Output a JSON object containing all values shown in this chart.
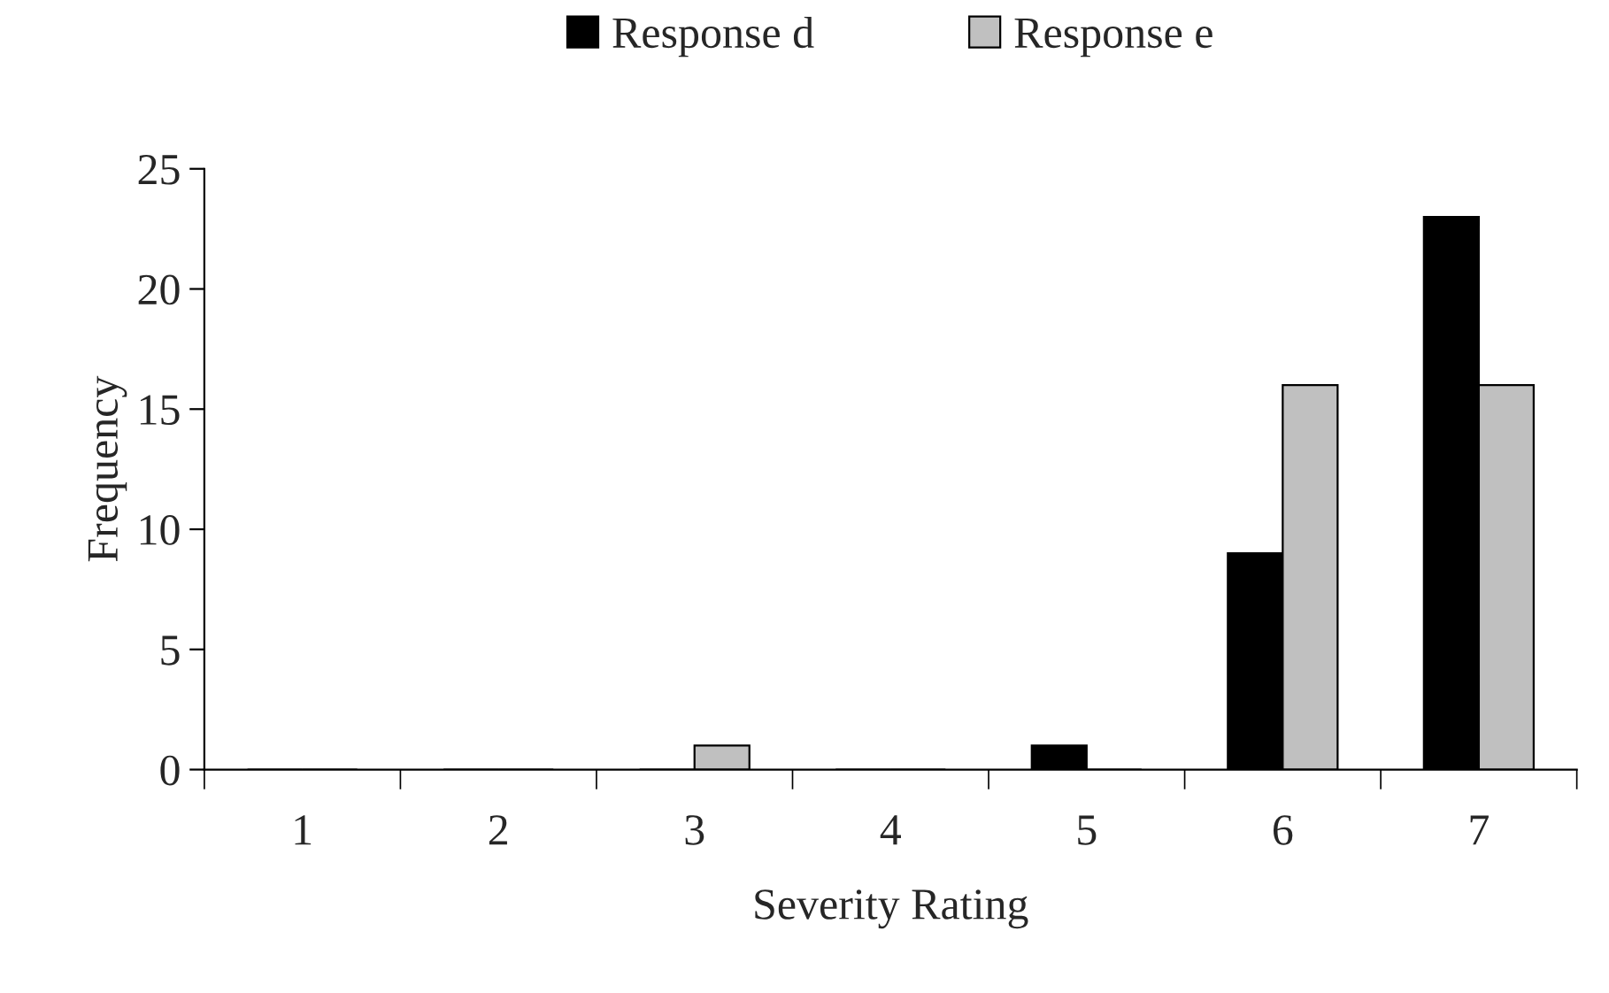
{
  "chart_data": {
    "type": "bar",
    "xlabel": "Severity Rating",
    "ylabel": "Frequency",
    "categories": [
      "1",
      "2",
      "3",
      "4",
      "5",
      "6",
      "7"
    ],
    "series": [
      {
        "name": "Response d",
        "color": "#000000",
        "values": [
          0,
          0,
          0,
          0,
          1,
          9,
          23
        ]
      },
      {
        "name": "Response e",
        "color": "#c0c0c0",
        "values": [
          0,
          0,
          1,
          0,
          0,
          16,
          16
        ]
      }
    ],
    "ylim": [
      0,
      25
    ],
    "yticks": [
      0,
      5,
      10,
      15,
      20,
      25
    ],
    "legend": "top",
    "grid": false
  }
}
